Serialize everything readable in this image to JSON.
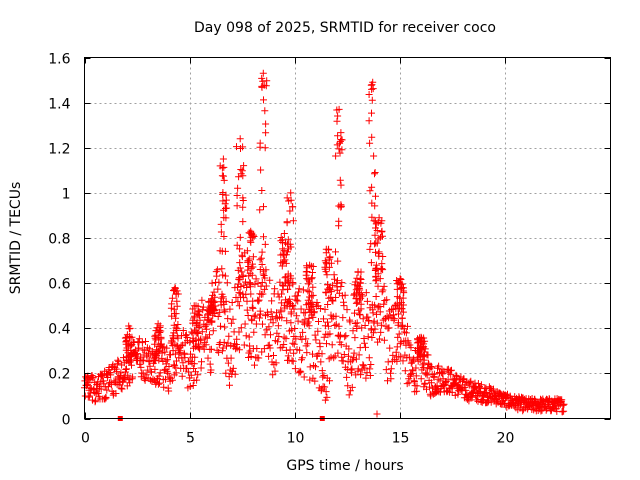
{
  "chart_data": {
    "type": "scatter",
    "title": "Day 098 of 2025, SRMTID for receiver coco",
    "xlabel": "GPS time / hours",
    "ylabel": "SRMTID / TECUs",
    "xlim": [
      0,
      25
    ],
    "ylim": [
      0,
      1.6
    ],
    "xticks": [
      0,
      5,
      10,
      15,
      20
    ],
    "xtick_labels": [
      "0",
      "5",
      "10",
      "15",
      "20"
    ],
    "yticks": [
      0,
      0.2,
      0.4,
      0.6,
      0.8,
      1.0,
      1.2,
      1.4,
      1.6
    ],
    "ytick_labels": [
      "0",
      "0.2",
      "0.4",
      "0.6",
      "0.8",
      "1",
      "1.2",
      "1.4",
      "1.6"
    ],
    "grid": true,
    "marker": "+",
    "color": "#ff0000",
    "series": [
      {
        "name": "SRMTID",
        "envelope": {
          "x": [
            0,
            0.5,
            1,
            1.5,
            2,
            2.5,
            3,
            3.5,
            4,
            4.5,
            5,
            5.5,
            6,
            6.5,
            7,
            7.5,
            8,
            8.5,
            9,
            9.5,
            10,
            10.5,
            11,
            11.5,
            12,
            12.5,
            13,
            13.5,
            14,
            14.5,
            15,
            15.5,
            16,
            16.5,
            17,
            17.5,
            18,
            18.5,
            19,
            19.5,
            20,
            20.5,
            21,
            21.5,
            22,
            22.5,
            22.8
          ],
          "y": [
            0.15,
            0.13,
            0.15,
            0.18,
            0.22,
            0.28,
            0.25,
            0.24,
            0.22,
            0.3,
            0.24,
            0.35,
            0.4,
            0.5,
            0.28,
            0.55,
            0.45,
            0.48,
            0.38,
            0.45,
            0.4,
            0.38,
            0.35,
            0.28,
            0.5,
            0.3,
            0.4,
            0.35,
            0.55,
            0.3,
            0.45,
            0.2,
            0.25,
            0.17,
            0.18,
            0.16,
            0.13,
            0.12,
            0.11,
            0.1,
            0.08,
            0.07,
            0.06,
            0.06,
            0.06,
            0.06,
            0.06
          ]
        },
        "spread": {
          "x": [
            0,
            2,
            4,
            5,
            6,
            7,
            8,
            9,
            10,
            11,
            12,
            13,
            14,
            15,
            15.5,
            16,
            17,
            18,
            19,
            20,
            21,
            22,
            22.8
          ],
          "y": [
            0.05,
            0.08,
            0.1,
            0.12,
            0.2,
            0.25,
            0.22,
            0.2,
            0.2,
            0.2,
            0.22,
            0.22,
            0.2,
            0.18,
            0.12,
            0.1,
            0.06,
            0.05,
            0.04,
            0.03,
            0.03,
            0.03,
            0.03
          ]
        },
        "peaks": [
          {
            "x": 2.1,
            "y": 0.41
          },
          {
            "x": 3.5,
            "y": 0.42
          },
          {
            "x": 4.3,
            "y": 0.58
          },
          {
            "x": 5.3,
            "y": 0.5
          },
          {
            "x": 6.0,
            "y": 0.52
          },
          {
            "x": 6.6,
            "y": 1.15
          },
          {
            "x": 7.4,
            "y": 1.24
          },
          {
            "x": 7.9,
            "y": 0.83
          },
          {
            "x": 8.5,
            "y": 1.53
          },
          {
            "x": 9.5,
            "y": 0.82
          },
          {
            "x": 9.8,
            "y": 1.0
          },
          {
            "x": 10.7,
            "y": 0.68
          },
          {
            "x": 11.6,
            "y": 0.75
          },
          {
            "x": 12.1,
            "y": 1.37
          },
          {
            "x": 13.0,
            "y": 0.65
          },
          {
            "x": 13.7,
            "y": 1.49
          },
          {
            "x": 14.0,
            "y": 0.89
          },
          {
            "x": 15.0,
            "y": 0.62
          },
          {
            "x": 16.0,
            "y": 0.36
          }
        ],
        "low_outliers": [
          {
            "x": 13.9,
            "y": 0.02
          }
        ],
        "zero_markers": [
          {
            "x": 1.7,
            "y": 0
          },
          {
            "x": 11.3,
            "y": 0
          }
        ]
      }
    ]
  }
}
